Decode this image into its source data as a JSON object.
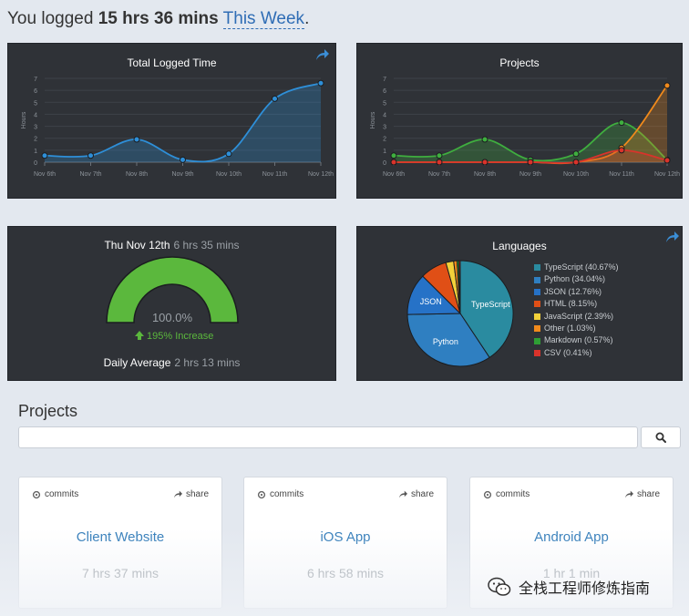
{
  "headline": {
    "prefix": "You logged ",
    "total": "15 hrs 36 mins",
    "period_link": "This Week",
    "suffix": "."
  },
  "total_chart": {
    "title": "Total Logged Time",
    "share_icon": "share-arrow-icon",
    "chart_data": {
      "type": "area",
      "title": "Total Logged Time",
      "ylabel": "Hours",
      "categories": [
        "Nov 6th",
        "Nov 7th",
        "Nov 8th",
        "Nov 9th",
        "Nov 10th",
        "Nov 11th",
        "Nov 12th"
      ],
      "y_ticks": [
        "0",
        "1",
        "2",
        "3",
        "4",
        "5",
        "6",
        "7"
      ],
      "ylim": [
        0,
        7
      ],
      "grid": true,
      "series": [
        {
          "values": [
            0.55,
            0.55,
            1.9,
            0.2,
            0.7,
            5.3,
            6.6
          ],
          "color": "#2e8fd8"
        }
      ]
    }
  },
  "projects_chart": {
    "title": "Projects",
    "chart_data": {
      "type": "area",
      "title": "Projects",
      "ylabel": "Hours",
      "categories": [
        "Nov 6th",
        "Nov 7th",
        "Nov 8th",
        "Nov 9th",
        "Nov 10th",
        "Nov 11th",
        "Nov 12th"
      ],
      "y_ticks": [
        "0",
        "1",
        "2",
        "3",
        "4",
        "5",
        "6",
        "7"
      ],
      "ylim": [
        0,
        7
      ],
      "grid": true,
      "series": [
        {
          "values": [
            0.55,
            0.55,
            1.9,
            0.2,
            0.7,
            3.3,
            0.2
          ],
          "color": "#3fae3f"
        },
        {
          "values": [
            0,
            0,
            0,
            0,
            0,
            1.2,
            6.4
          ],
          "color": "#f08a1c"
        },
        {
          "values": [
            0,
            0,
            0,
            0,
            0,
            1.0,
            0.15
          ],
          "color": "#d9332b"
        }
      ]
    }
  },
  "day_stats": {
    "day_label": "Thu Nov 12th",
    "day_time": "6 hrs 35 mins",
    "gauge_percent_label": "100.0%",
    "gauge_fraction": 1.0,
    "increase_text": "195% Increase",
    "increase_icon": "arrow-up-icon",
    "daily_average_label": "Daily Average",
    "daily_average_value": "2 hrs 13 mins",
    "gauge_color": "#5bb83d",
    "increase_color": "#5bb83d"
  },
  "languages_chart": {
    "title": "Languages",
    "share_icon": "share-arrow-icon",
    "chart_data": {
      "type": "pie",
      "title": "Languages",
      "legend_position": "right",
      "slices": [
        {
          "label": "TypeScript (40.67%)",
          "value": 40.67,
          "color": "#2a8ba0",
          "slice_label": "TypeScript"
        },
        {
          "label": "Python (34.04%)",
          "value": 34.04,
          "color": "#2f7fc1",
          "slice_label": "Python"
        },
        {
          "label": "JSON (12.76%)",
          "value": 12.76,
          "color": "#2672c7",
          "slice_label": "JSON"
        },
        {
          "label": "HTML (8.15%)",
          "value": 8.15,
          "color": "#e04f16",
          "slice_label": ""
        },
        {
          "label": "JavaScript (2.39%)",
          "value": 2.39,
          "color": "#f2d13a",
          "slice_label": ""
        },
        {
          "label": "Other (1.03%)",
          "value": 1.03,
          "color": "#f08a1c",
          "slice_label": ""
        },
        {
          "label": "Markdown (0.57%)",
          "value": 0.57,
          "color": "#2e9e34",
          "slice_label": ""
        },
        {
          "label": "CSV (0.41%)",
          "value": 0.41,
          "color": "#d9332b",
          "slice_label": ""
        }
      ]
    }
  },
  "projects_section": {
    "title": "Projects",
    "search_placeholder": "",
    "search_value": "",
    "search_icon": "magnifier-icon"
  },
  "project_cards": [
    {
      "commits_label": "commits",
      "share_label": "share",
      "name": "Client Website",
      "time": "7 hrs 37 mins"
    },
    {
      "commits_label": "commits",
      "share_label": "share",
      "name": "iOS App",
      "time": "6 hrs 58 mins"
    },
    {
      "commits_label": "commits",
      "share_label": "share",
      "name": "Android App",
      "time": "1 hr 1 min"
    }
  ],
  "watermark": {
    "text": "全栈工程师修炼指南",
    "icon": "wechat-logo-icon"
  }
}
